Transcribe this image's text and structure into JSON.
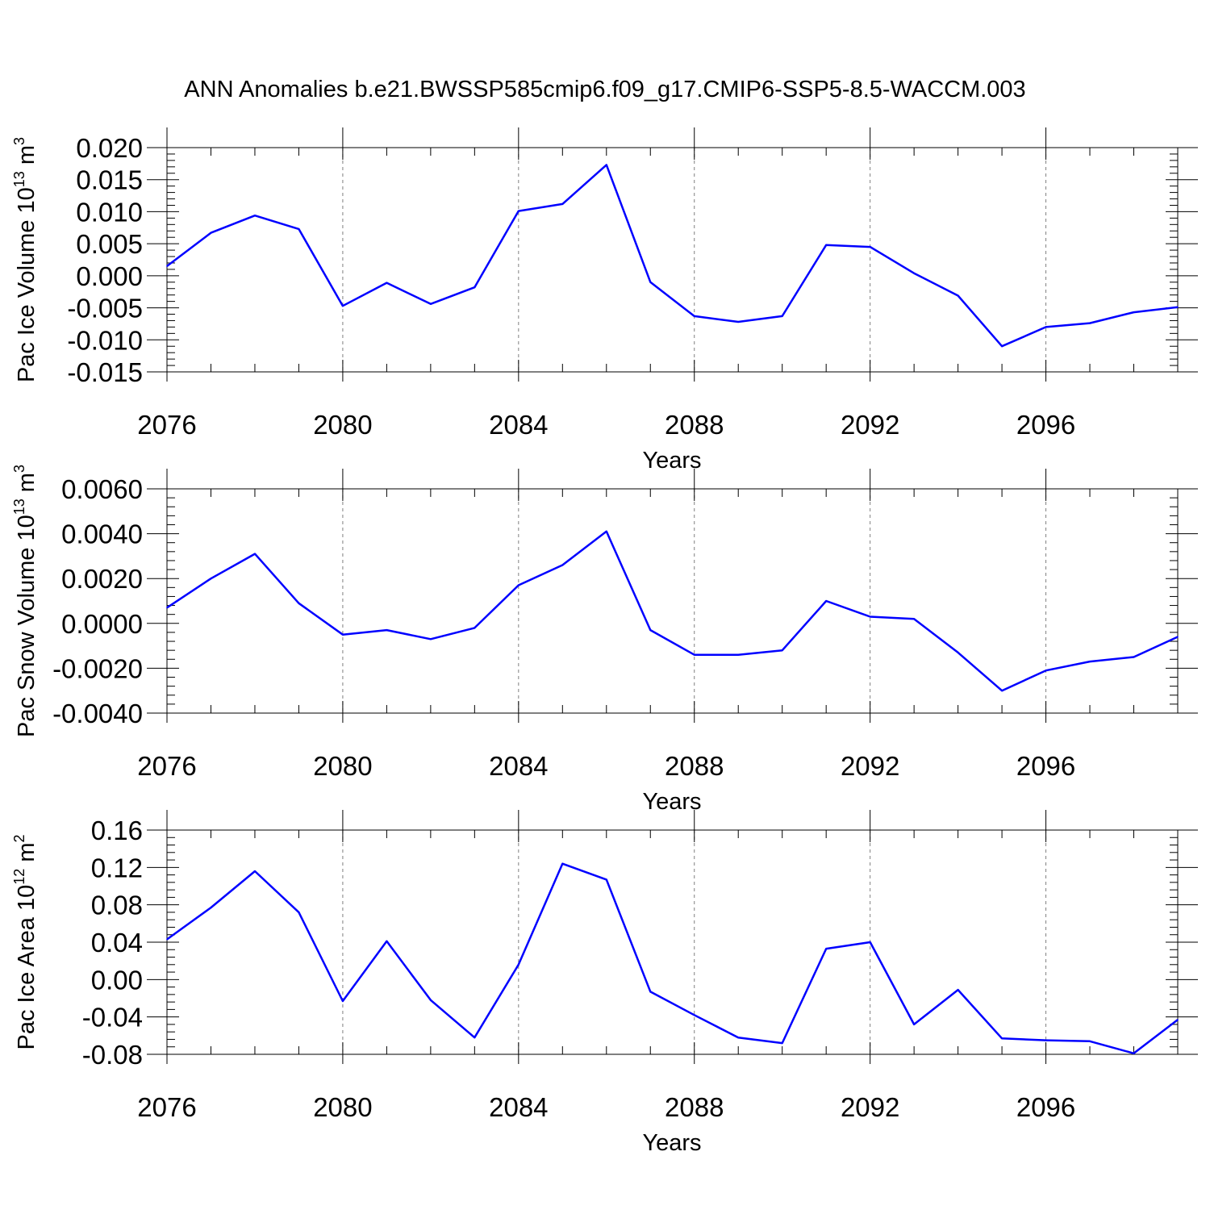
{
  "figure_title": "ANN Anomalies b.e21.BWSSP585cmip6.f09_g17.CMIP6-SSP5-8.5-WACCM.003",
  "chart_data": [
    {
      "type": "line",
      "ylabel": {
        "main": "Pac Ice Volume 10",
        "exp": "13",
        "unit": " m",
        "unit_exp": "3"
      },
      "xlabel": "Years",
      "xlim": [
        2076,
        2099
      ],
      "ylim": [
        -0.015,
        0.02
      ],
      "x_ticks": [
        2076,
        2080,
        2084,
        2088,
        2092,
        2096
      ],
      "x_tick_labels": [
        "2076",
        "2080",
        "2084",
        "2088",
        "2092",
        "2096"
      ],
      "y_ticks": [
        -0.015,
        -0.01,
        -0.005,
        0,
        0.005,
        0.01,
        0.015,
        0.02
      ],
      "y_tick_labels": [
        "-0.015",
        "-0.010",
        "-0.005",
        "0.000",
        "0.005",
        "0.010",
        "0.015",
        "0.020"
      ],
      "grid": "vertical dashed at major x ticks",
      "line_color": "#0000ff",
      "x": [
        2076,
        2077,
        2078,
        2079,
        2080,
        2081,
        2082,
        2083,
        2084,
        2085,
        2086,
        2087,
        2088,
        2089,
        2090,
        2091,
        2092,
        2093,
        2094,
        2095,
        2096,
        2097,
        2098,
        2099
      ],
      "values": [
        0.0015,
        0.0067,
        0.0094,
        0.0073,
        -0.0047,
        -0.0011,
        -0.0044,
        -0.0018,
        0.0101,
        0.0112,
        0.0173,
        -0.001,
        -0.0063,
        -0.0072,
        -0.0063,
        0.0048,
        0.0045,
        0.0004,
        -0.0031,
        -0.011,
        -0.008,
        -0.0074,
        -0.0057,
        -0.0049
      ]
    },
    {
      "type": "line",
      "ylabel": {
        "main": "Pac Snow Volume 10",
        "exp": "13",
        "unit": " m",
        "unit_exp": "3"
      },
      "xlabel": "Years",
      "xlim": [
        2076,
        2099
      ],
      "ylim": [
        -0.004,
        0.006
      ],
      "x_ticks": [
        2076,
        2080,
        2084,
        2088,
        2092,
        2096
      ],
      "x_tick_labels": [
        "2076",
        "2080",
        "2084",
        "2088",
        "2092",
        "2096"
      ],
      "y_ticks": [
        -0.004,
        -0.002,
        0,
        0.002,
        0.004,
        0.006
      ],
      "y_tick_labels": [
        "-0.0040",
        "-0.0020",
        "0.0000",
        "0.0020",
        "0.0040",
        "0.0060"
      ],
      "grid": "vertical dashed at major x ticks",
      "line_color": "#0000ff",
      "x": [
        2076,
        2077,
        2078,
        2079,
        2080,
        2081,
        2082,
        2083,
        2084,
        2085,
        2086,
        2087,
        2088,
        2089,
        2090,
        2091,
        2092,
        2093,
        2094,
        2095,
        2096,
        2097,
        2098,
        2099
      ],
      "values": [
        0.0007,
        0.002,
        0.0031,
        0.0009,
        -0.0005,
        -0.0003,
        -0.0007,
        -0.0002,
        0.0017,
        0.0026,
        0.0041,
        -0.0003,
        -0.0014,
        -0.0014,
        -0.0012,
        0.001,
        0.0003,
        0.0002,
        -0.0013,
        -0.003,
        -0.0021,
        -0.0017,
        -0.0015,
        -0.0006
      ]
    },
    {
      "type": "line",
      "ylabel": {
        "main": "Pac Ice Area 10",
        "exp": "12",
        "unit": " m",
        "unit_exp": "2"
      },
      "xlabel": "Years",
      "xlim": [
        2076,
        2099
      ],
      "ylim": [
        -0.08,
        0.16
      ],
      "x_ticks": [
        2076,
        2080,
        2084,
        2088,
        2092,
        2096
      ],
      "x_tick_labels": [
        "2076",
        "2080",
        "2084",
        "2088",
        "2092",
        "2096"
      ],
      "y_ticks": [
        -0.08,
        -0.04,
        0,
        0.04,
        0.08,
        0.12,
        0.16
      ],
      "y_tick_labels": [
        "-0.08",
        "-0.04",
        "0.00",
        "0.04",
        "0.08",
        "0.12",
        "0.16"
      ],
      "grid": "vertical dashed at major x ticks",
      "line_color": "#0000ff",
      "x": [
        2076,
        2077,
        2078,
        2079,
        2080,
        2081,
        2082,
        2083,
        2084,
        2085,
        2086,
        2087,
        2088,
        2089,
        2090,
        2091,
        2092,
        2093,
        2094,
        2095,
        2096,
        2097,
        2098,
        2099
      ],
      "values": [
        0.043,
        0.077,
        0.116,
        0.072,
        -0.023,
        0.041,
        -0.022,
        -0.062,
        0.016,
        0.124,
        0.107,
        -0.013,
        -0.038,
        -0.062,
        -0.068,
        0.033,
        0.04,
        -0.048,
        -0.011,
        -0.063,
        -0.065,
        -0.066,
        -0.079,
        -0.043
      ]
    }
  ]
}
